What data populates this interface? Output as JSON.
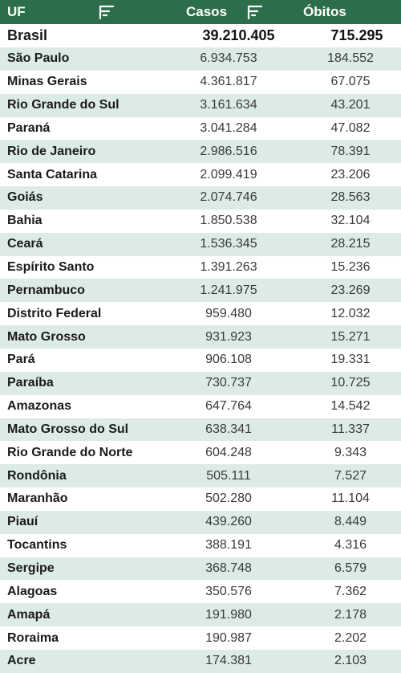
{
  "header": {
    "uf_label": "UF",
    "casos_label": "Casos",
    "obitos_label": "Óbitos",
    "filter_icon": "filter-lines-icon"
  },
  "total": {
    "uf": "Brasil",
    "casos": "39.210.405",
    "obitos": "715.295"
  },
  "rows": [
    {
      "uf": "São Paulo",
      "casos": "6.934.753",
      "obitos": "184.552"
    },
    {
      "uf": "Minas Gerais",
      "casos": "4.361.817",
      "obitos": "67.075"
    },
    {
      "uf": "Rio Grande do Sul",
      "casos": "3.161.634",
      "obitos": "43.201"
    },
    {
      "uf": "Paraná",
      "casos": "3.041.284",
      "obitos": "47.082"
    },
    {
      "uf": "Rio de Janeiro",
      "casos": "2.986.516",
      "obitos": "78.391"
    },
    {
      "uf": "Santa Catarina",
      "casos": "2.099.419",
      "obitos": "23.206"
    },
    {
      "uf": "Goiás",
      "casos": "2.074.746",
      "obitos": "28.563"
    },
    {
      "uf": "Bahia",
      "casos": "1.850.538",
      "obitos": "32.104"
    },
    {
      "uf": "Ceará",
      "casos": "1.536.345",
      "obitos": "28.215"
    },
    {
      "uf": "Espírito Santo",
      "casos": "1.391.263",
      "obitos": "15.236"
    },
    {
      "uf": "Pernambuco",
      "casos": "1.241.975",
      "obitos": "23.269"
    },
    {
      "uf": "Distrito Federal",
      "casos": "959.480",
      "obitos": "12.032"
    },
    {
      "uf": "Mato Grosso",
      "casos": "931.923",
      "obitos": "15.271"
    },
    {
      "uf": "Pará",
      "casos": "906.108",
      "obitos": "19.331"
    },
    {
      "uf": "Paraíba",
      "casos": "730.737",
      "obitos": "10.725"
    },
    {
      "uf": "Amazonas",
      "casos": "647.764",
      "obitos": "14.542"
    },
    {
      "uf": "Mato Grosso do Sul",
      "casos": "638.341",
      "obitos": "11.337"
    },
    {
      "uf": "Rio Grande do Norte",
      "casos": "604.248",
      "obitos": "9.343"
    },
    {
      "uf": "Rondônia",
      "casos": "505.111",
      "obitos": "7.527"
    },
    {
      "uf": "Maranhão",
      "casos": "502.280",
      "obitos": "11.104"
    },
    {
      "uf": "Piauí",
      "casos": "439.260",
      "obitos": "8.449"
    },
    {
      "uf": "Tocantins",
      "casos": "388.191",
      "obitos": "4.316"
    },
    {
      "uf": "Sergipe",
      "casos": "368.748",
      "obitos": "6.579"
    },
    {
      "uf": "Alagoas",
      "casos": "350.576",
      "obitos": "7.362"
    },
    {
      "uf": "Amapá",
      "casos": "191.980",
      "obitos": "2.178"
    },
    {
      "uf": "Roraima",
      "casos": "190.987",
      "obitos": "2.202"
    },
    {
      "uf": "Acre",
      "casos": "174.381",
      "obitos": "2.103"
    }
  ],
  "colors": {
    "header_bg": "#2c6e49",
    "stripe": "#dcebe6",
    "white": "#ffffff"
  }
}
